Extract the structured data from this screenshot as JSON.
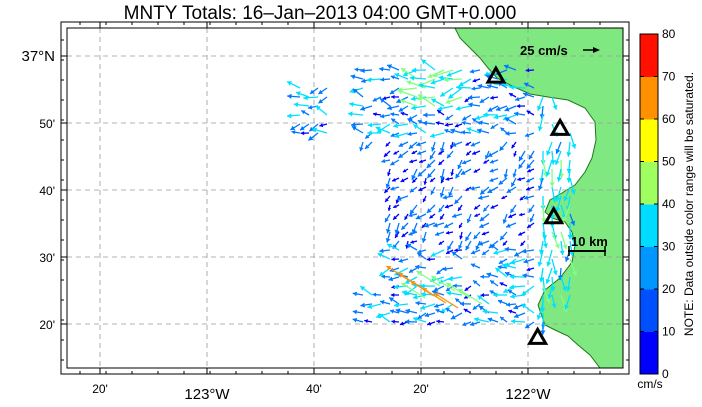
{
  "title": "MNTY Totals: 16–Jan–2013 04:00 GMT+0.000",
  "scale_arrow_label": "25 cm/s",
  "scale_bar_label": "10 km",
  "colorbar": {
    "ticks": [
      "80",
      "70",
      "60",
      "50",
      "40",
      "30",
      "20",
      "10",
      "0"
    ],
    "unit": "cm/s",
    "note": "NOTE: Data outside color range will be saturated.",
    "colors": [
      "#000080",
      "#0000ff",
      "#0078ff",
      "#00c8ff",
      "#40ffc0",
      "#80ff80",
      "#ffff00",
      "#ff8000",
      "#ff0000",
      "#800000"
    ]
  },
  "axes": {
    "lat_labels": [
      {
        "label": "37°N",
        "lat": 37.0,
        "major": true
      },
      {
        "label": "50'",
        "lat": 36.8333
      },
      {
        "label": "40'",
        "lat": 36.6667
      },
      {
        "label": "30'",
        "lat": 36.5
      },
      {
        "label": "20'",
        "lat": 36.3333
      }
    ],
    "lon_labels": [
      {
        "label": "20'",
        "lon": -123.3333
      },
      {
        "label": "123°W",
        "lon": -123.0,
        "major": true
      },
      {
        "label": "40'",
        "lon": -122.6667
      },
      {
        "label": "20'",
        "lon": -122.3333
      },
      {
        "label": "122°W",
        "lon": -122.0,
        "major": true
      }
    ]
  },
  "stations": [
    {
      "lat": 36.95,
      "lon": -122.1
    },
    {
      "lat": 36.82,
      "lon": -121.9
    },
    {
      "lat": 36.6,
      "lon": -121.92
    },
    {
      "lat": 36.3,
      "lon": -121.97
    }
  ],
  "colors": {
    "land": "#80e880",
    "grid": "#999999"
  }
}
